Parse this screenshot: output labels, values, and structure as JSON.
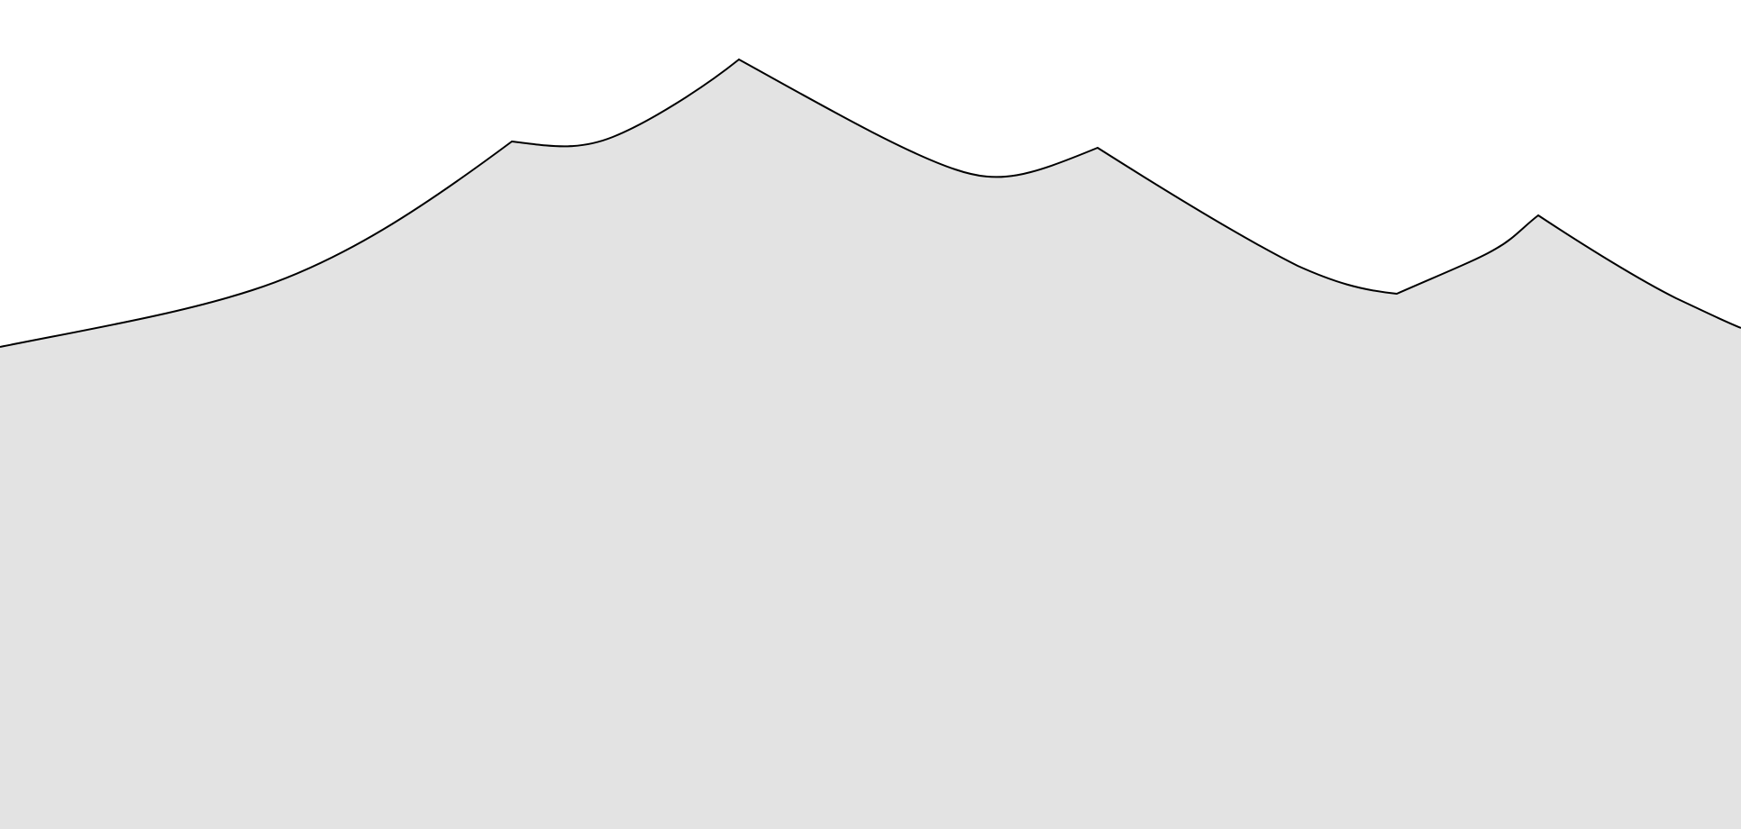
{
  "scene": {
    "background_color": "#ffffff",
    "fill_color": "#e3e3e3",
    "stroke_color": "#000000",
    "shape": "mountain-silhouette"
  }
}
